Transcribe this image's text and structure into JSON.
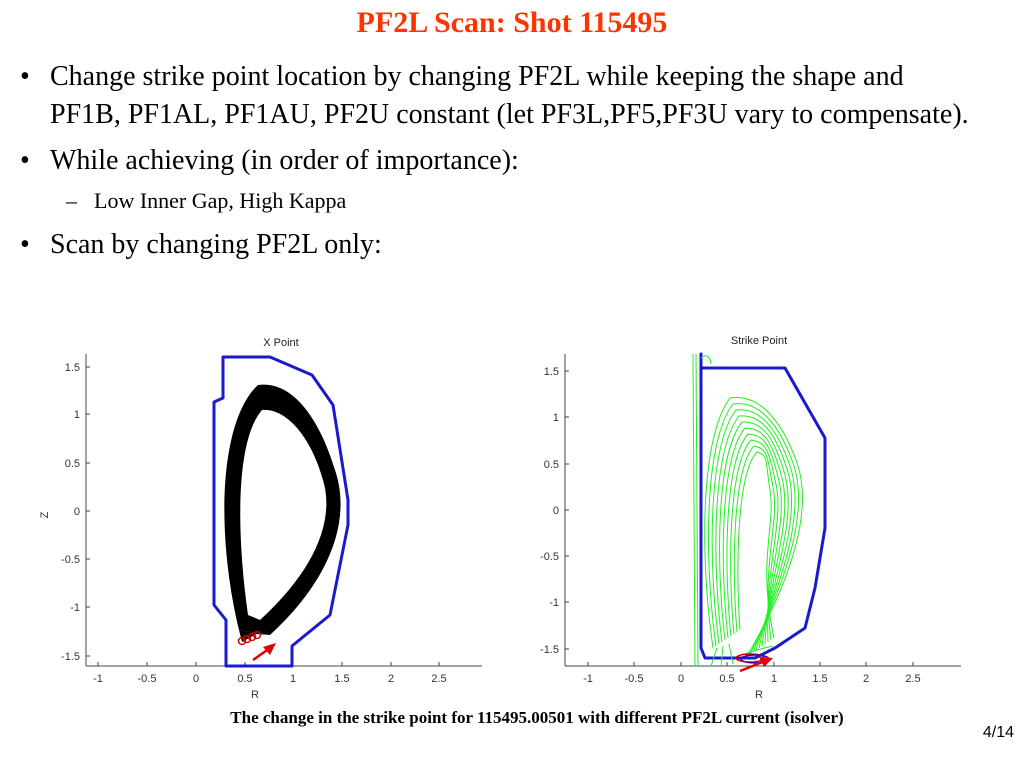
{
  "slide": {
    "title": "PF2L Scan: Shot 115495",
    "bullets": [
      {
        "marker": "•",
        "text": "Change strike point location by changing PF2L while keeping the shape and PF1B, PF1AL, PF1AU, PF2U constant (let PF3L,PF5,PF3U vary to compensate)."
      },
      {
        "marker": "•",
        "text": "While achieving (in order of importance):"
      },
      {
        "marker": "•",
        "text": "Scan by changing PF2L only:"
      }
    ],
    "sub_bullet": {
      "marker": "–",
      "text": "Low Inner Gap, High Kappa"
    },
    "caption": "The change in the strike point for 115495.00501 with different PF2L current (isolver)",
    "page_number": "4/14"
  },
  "colors": {
    "title": "#ff3300",
    "vessel": "#1a1acc",
    "plasma_left": "#000000",
    "plasma_right": "#22ee22",
    "strike_arrow": "#e00000",
    "strike_marks": "#cc0000"
  },
  "plots": [
    {
      "title": "X Point",
      "xlabel": "R",
      "ylabel": "Z",
      "x_ticks": [
        "-1",
        "-0.5",
        "0",
        "0.5",
        "1",
        "1.5",
        "2",
        "2.5"
      ],
      "y_ticks": [
        "1.5",
        "1",
        "0.5",
        "0",
        "-0.5",
        "-1",
        "-1.5"
      ]
    },
    {
      "title": "Strike Point",
      "xlabel": "R",
      "ylabel": "",
      "x_ticks": [
        "-1",
        "-0.5",
        "0",
        "0.5",
        "1",
        "1.5",
        "2",
        "2.5"
      ],
      "y_ticks": [
        "1.5",
        "1",
        "0.5",
        "0",
        "-0.5",
        "-1",
        "-1.5"
      ]
    }
  ]
}
